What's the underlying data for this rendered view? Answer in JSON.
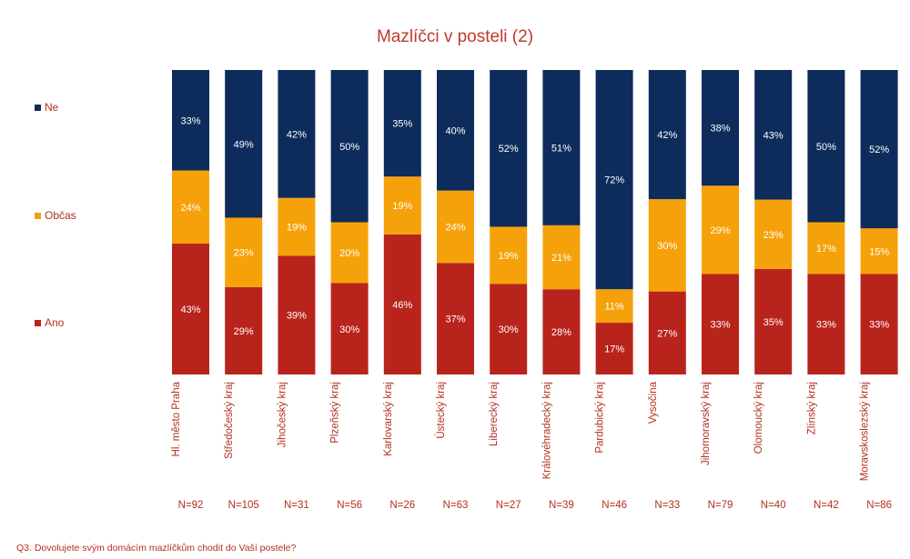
{
  "chart_data": {
    "type": "bar",
    "stacked": true,
    "title": "Mazlíčci v posteli (2)",
    "footnote": "Q3. Dovolujete svým domácím mazlíčkům chodit do Vaší postele?",
    "categories": [
      "Hl. město Praha",
      "Středočeský kraj",
      "Jihočeský kraj",
      "Plzeňský kraj",
      "Karlovarský kraj",
      "Ústecký kraj",
      "Liberecký kraj",
      "Královéhradecký kraj",
      "Pardubický kraj",
      "Vysočina",
      "Jihomoravský kraj",
      "Olomoucký kraj",
      "Zlínský kraj",
      "Moravskoslezský kraj"
    ],
    "n_labels": [
      "N=92",
      "N=105",
      "N=31",
      "N=56",
      "N=26",
      "N=63",
      "N=27",
      "N=39",
      "N=46",
      "N=33",
      "N=79",
      "N=40",
      "N=42",
      "N=86"
    ],
    "series": [
      {
        "name": "Ano",
        "color": "#b8241c",
        "values": [
          43,
          29,
          39,
          30,
          46,
          37,
          30,
          28,
          17,
          27,
          33,
          35,
          33,
          33
        ]
      },
      {
        "name": "Občas",
        "color": "#f5a20a",
        "values": [
          24,
          23,
          19,
          20,
          19,
          24,
          19,
          21,
          11,
          30,
          29,
          23,
          17,
          15
        ]
      },
      {
        "name": "Ne",
        "color": "#0d2c5c",
        "values": [
          33,
          49,
          42,
          50,
          35,
          40,
          52,
          51,
          72,
          42,
          38,
          43,
          50,
          52
        ]
      }
    ],
    "value_suffix": "%",
    "legend_position": "left",
    "legend_order": [
      "Ne",
      "Občas",
      "Ano"
    ],
    "text_color": "#b03020"
  }
}
